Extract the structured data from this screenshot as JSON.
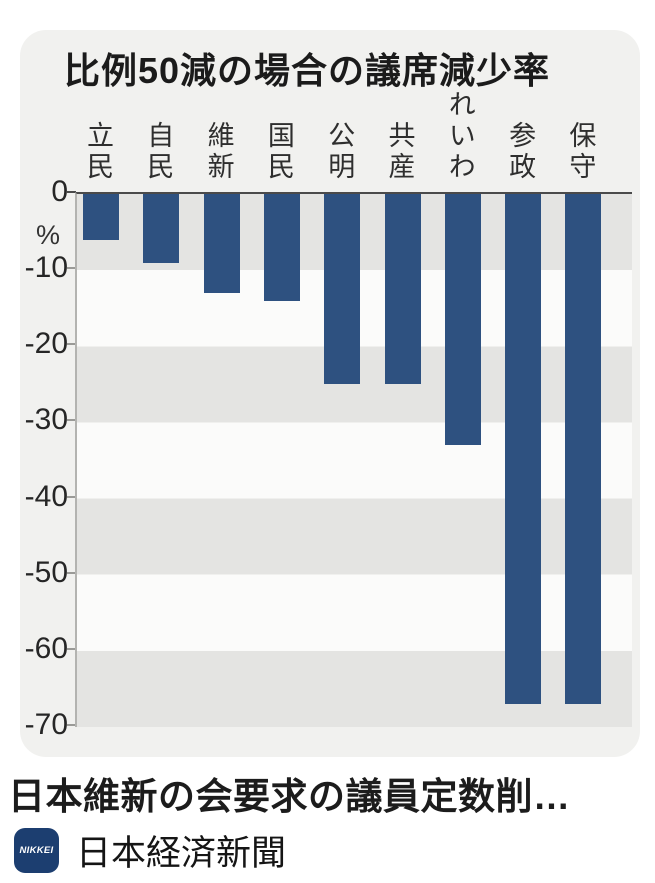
{
  "chart_data": {
    "type": "bar",
    "title": "比例50減の場合の議席減少率",
    "unit": "%",
    "categories": [
      "立民",
      "自民",
      "維新",
      "国民",
      "公明",
      "共産",
      "れいわ",
      "参政",
      "保守"
    ],
    "values": [
      -6,
      -9,
      -13,
      -14,
      -25,
      -25,
      -33,
      -67,
      -67
    ],
    "ylim": [
      -70,
      0
    ],
    "yticks": [
      0,
      -10,
      -20,
      -30,
      -40,
      -50,
      -60,
      -70
    ],
    "grid": "alternating horizontal bands every 10 units",
    "legend": "none",
    "bar_color": "#2e5180",
    "band_colors": [
      "#e4e4e2",
      "#fbfbfa"
    ]
  },
  "caption": {
    "headline": "日本維新の会要求の議員定数削…"
  },
  "source": {
    "logo_text": "NIKKEI",
    "name": "日本経済新聞",
    "logo_color": "#1c3e70"
  }
}
